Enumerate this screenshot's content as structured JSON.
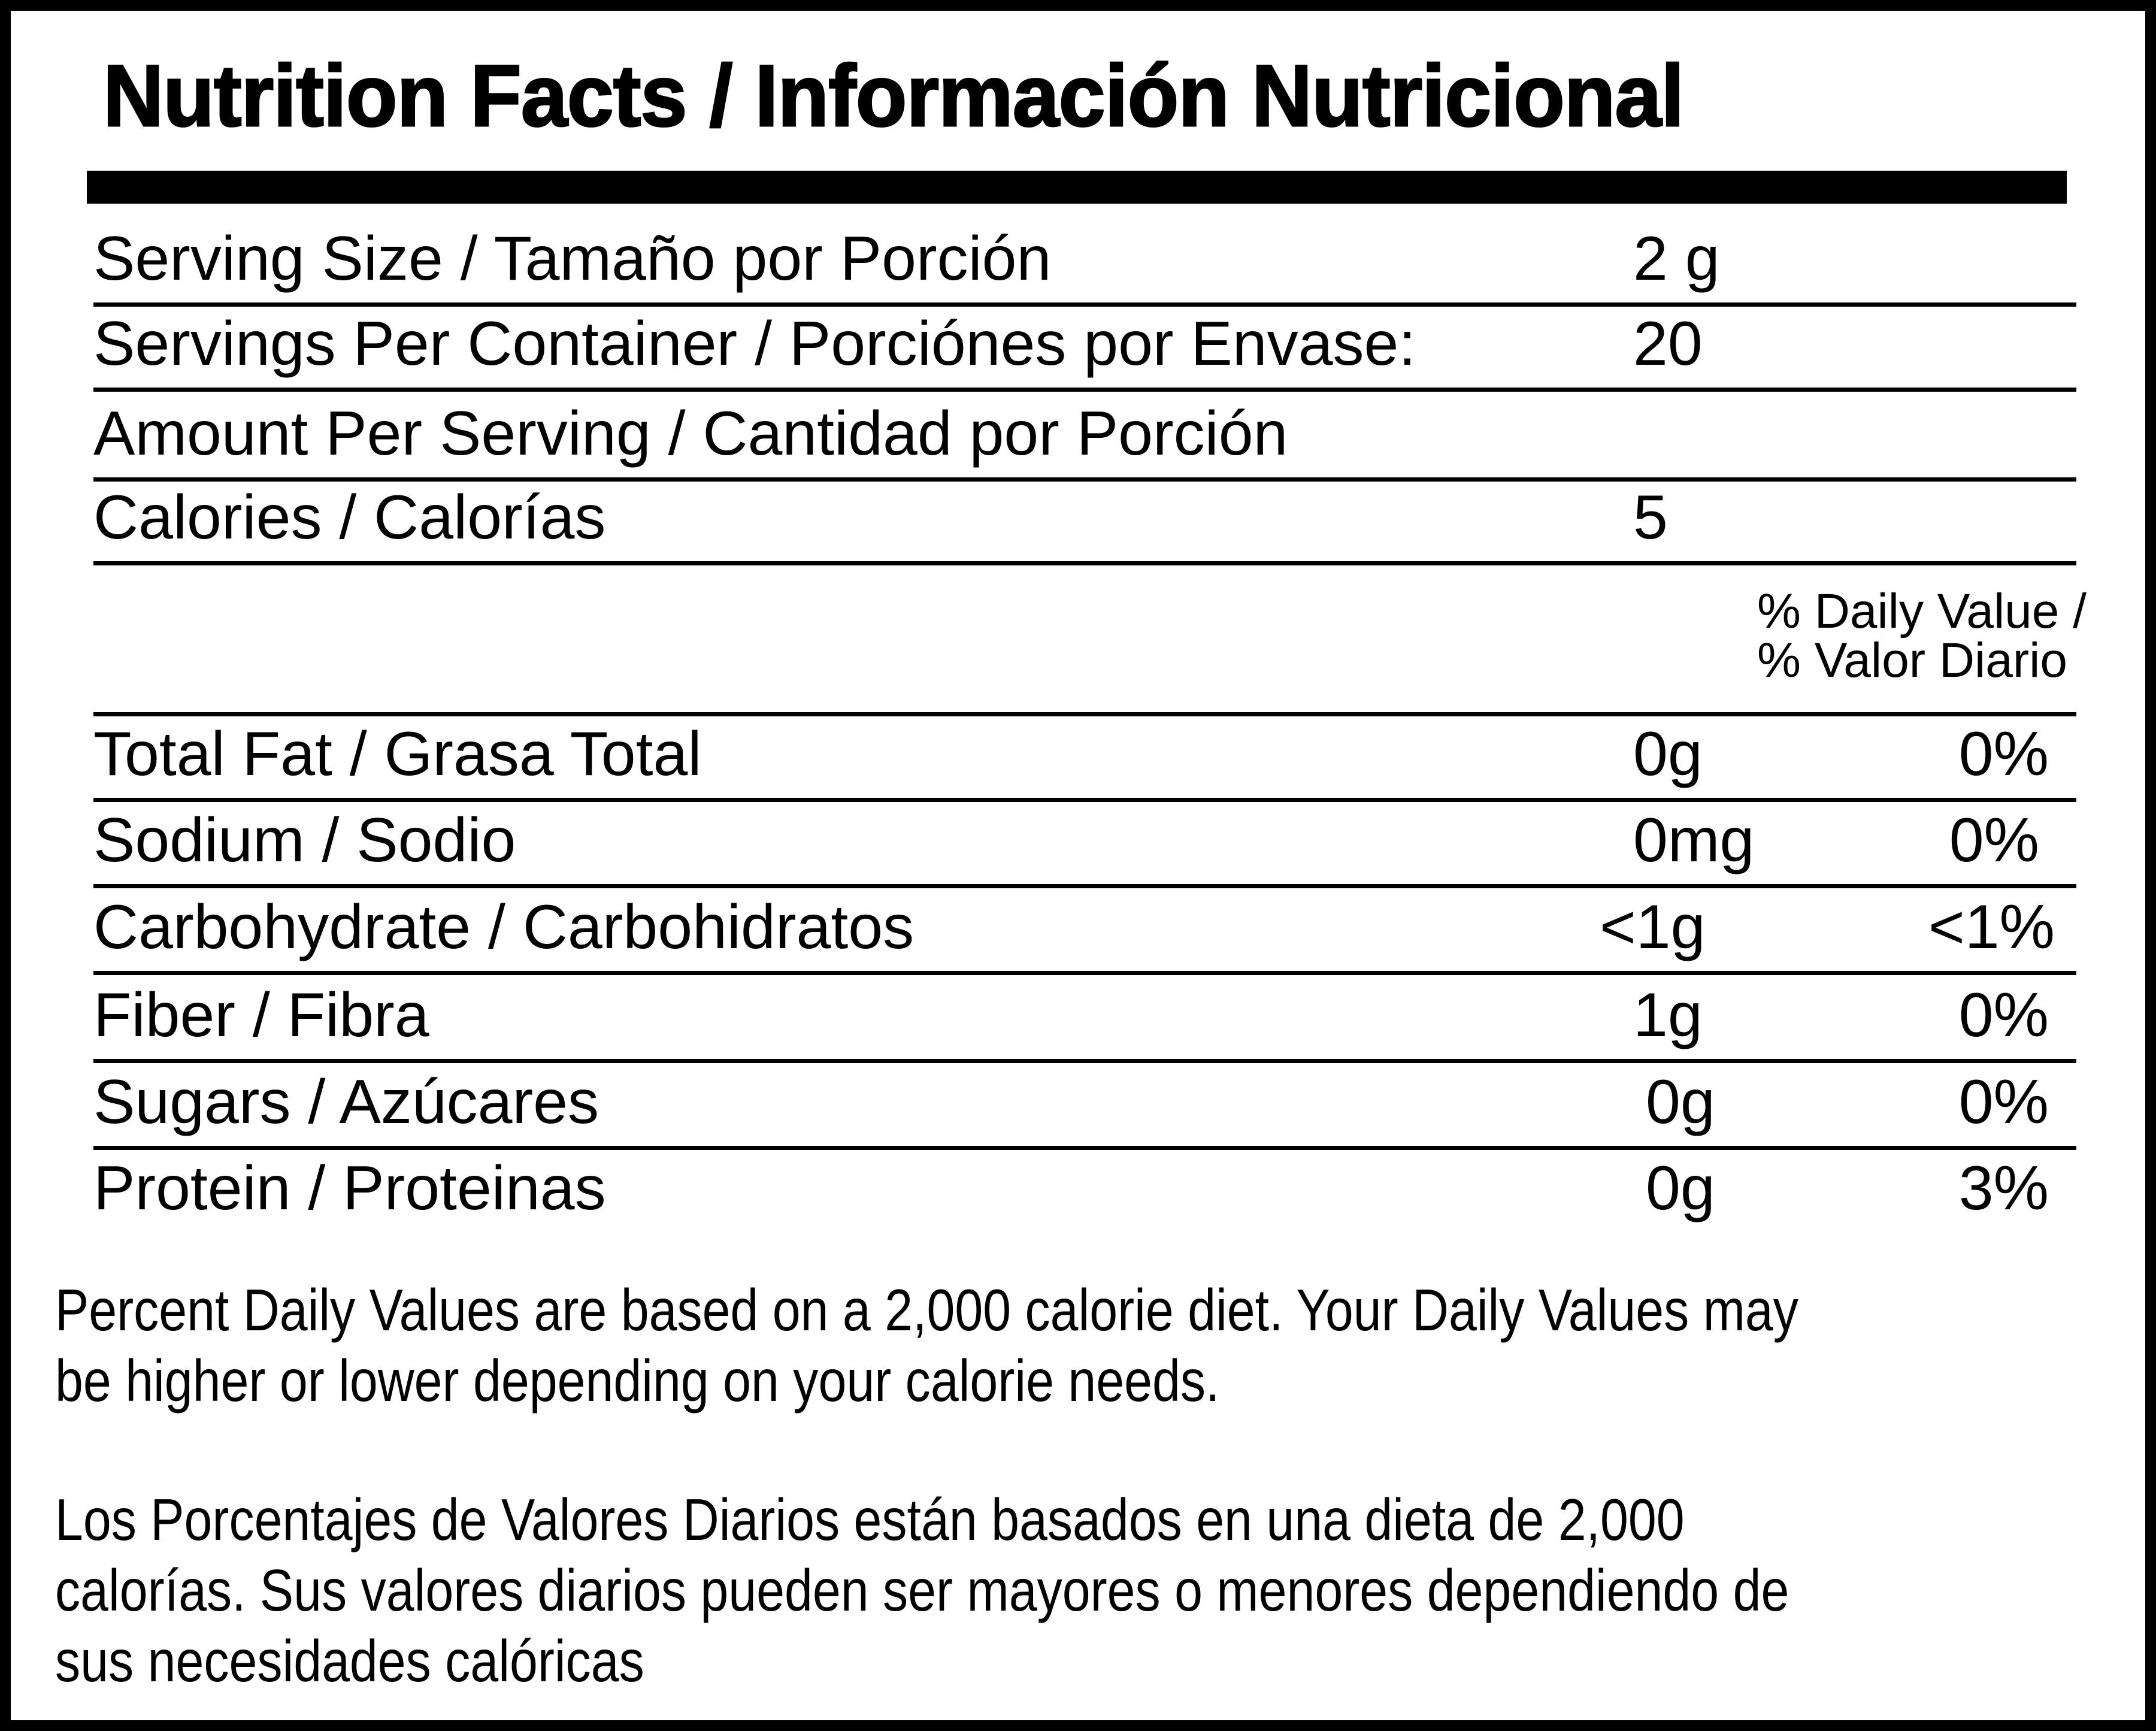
{
  "title": "Nutrition Facts / Información Nutricional",
  "serving": {
    "size_label": "Serving Size / Tamaño por Porción",
    "size_value": "2 g",
    "per_container_label": "Servings Per Container / Porciónes por Envase:",
    "per_container_value": "20",
    "amount_label": "Amount Per Serving / Cantidad por Porción",
    "calories_label": "Calories / Calorías",
    "calories_value": "5"
  },
  "dv_header": [
    "% Daily Value /",
    "% Valor Diario"
  ],
  "nutrients": [
    {
      "label": "Total Fat / Grasa Total",
      "amount": "0g",
      "dv": "0%"
    },
    {
      "label": "Sodium / Sodio",
      "amount": "0mg",
      "dv": "0%"
    },
    {
      "label": "Carbohydrate / Carbohidratos",
      "amount": "<1g",
      "dv": "<1%"
    },
    {
      "label": "Fiber / Fibra",
      "amount": "1g",
      "dv": "0%"
    },
    {
      "label": "Sugars / Azúcares",
      "amount": "0g",
      "dv": "0%"
    },
    {
      "label": "Protein / Proteinas",
      "amount": "0g",
      "dv": "3%"
    }
  ],
  "footnote_en": [
    "Percent Daily Values are based on a 2,000 calorie diet. Your Daily Values may",
    "be higher or lower depending on your calorie needs."
  ],
  "footnote_es": [
    "Los Porcentajes de Valores Diarios están basados en una dieta de 2,000",
    "calorías. Sus valores diarios pueden ser mayores o menores dependiendo de",
    "sus necesidades calóricas"
  ]
}
